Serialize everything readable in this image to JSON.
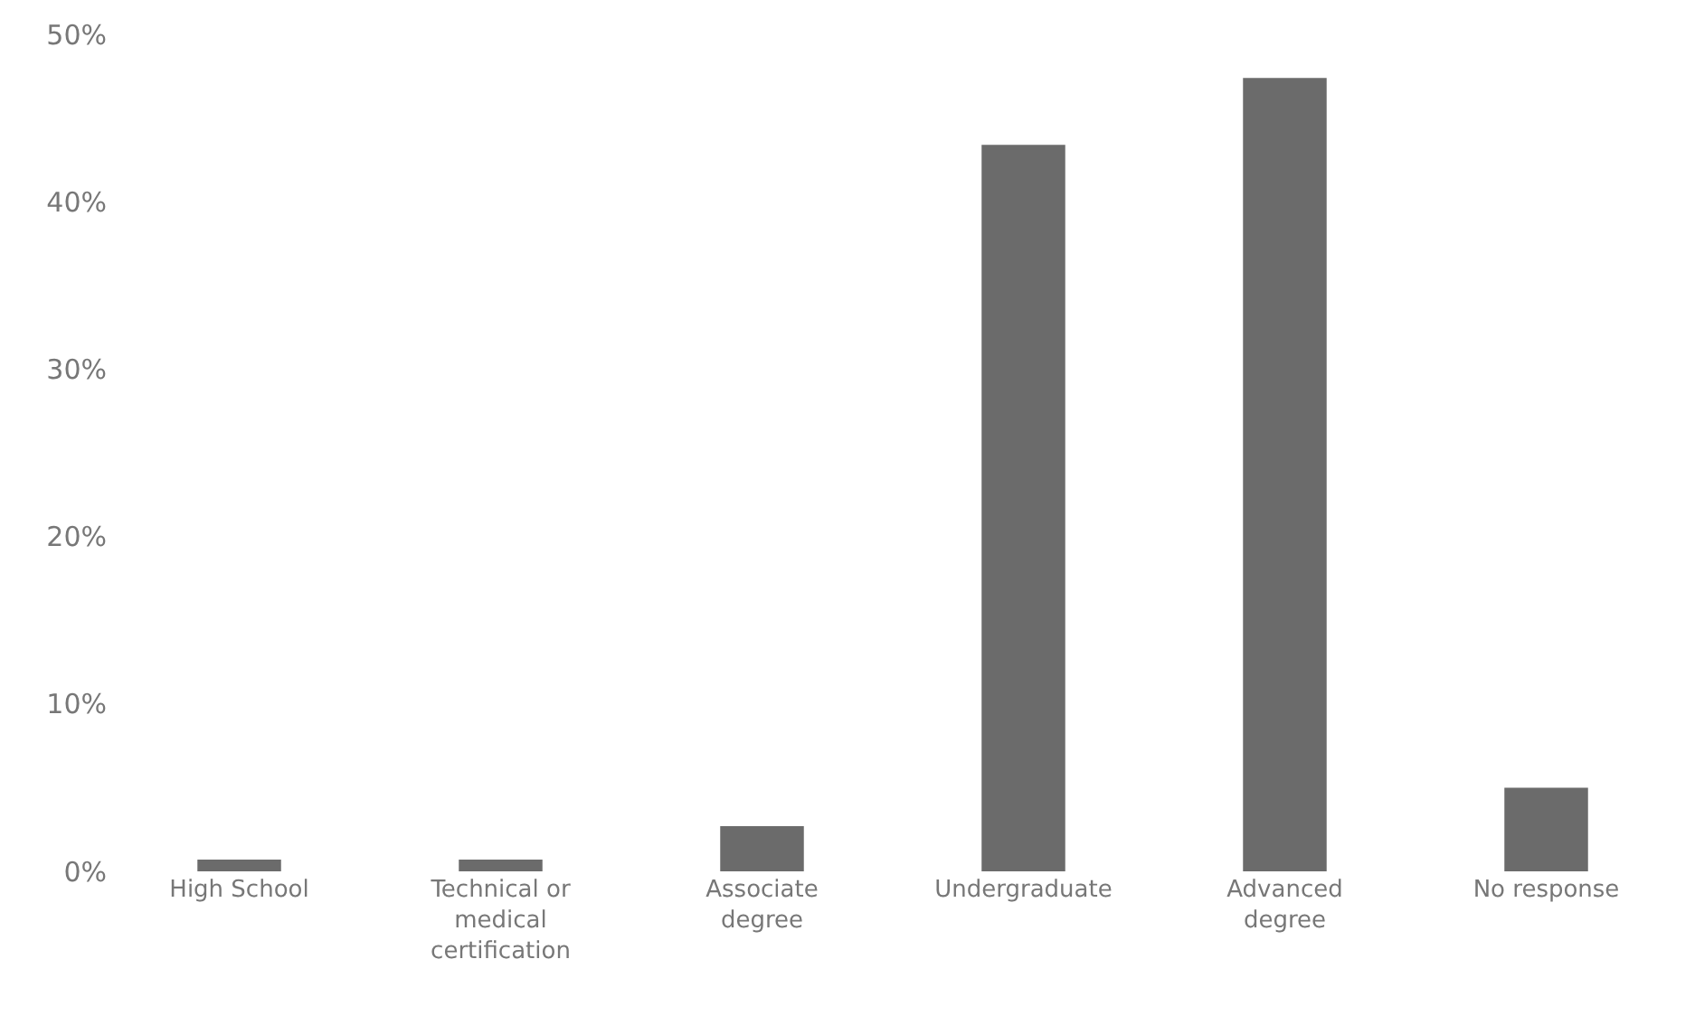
{
  "chart_data": {
    "type": "bar",
    "categories": [
      "High School",
      "Technical or\nmedical\ncertification",
      "Associate\ndegree",
      "Undergraduate",
      "Advanced\ndegree",
      "No response"
    ],
    "values": [
      0.7,
      0.7,
      2.7,
      43.4,
      47.4,
      5.0
    ],
    "color": "#6b6b6b",
    "ylim": [
      0,
      50
    ],
    "yticks": [
      {
        "value": 0,
        "label": "0%"
      },
      {
        "value": 10,
        "label": "10%"
      },
      {
        "value": 20,
        "label": "20%"
      },
      {
        "value": 30,
        "label": "30%"
      },
      {
        "value": 40,
        "label": "40%"
      },
      {
        "value": 50,
        "label": "50%"
      }
    ],
    "tick_labels": "xy"
  }
}
